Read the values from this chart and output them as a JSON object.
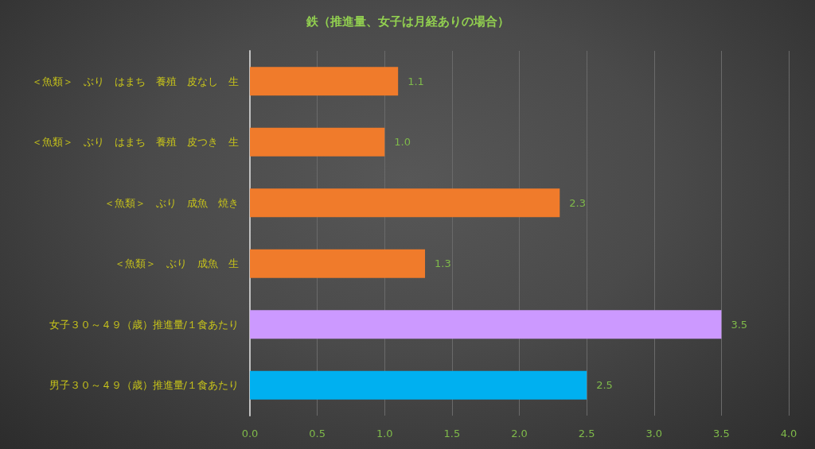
{
  "chart_data": {
    "type": "bar",
    "orientation": "horizontal",
    "title": "鉄（推進量、女子は月経ありの場合）",
    "categories": [
      "＜魚類＞　ぶり　はまち　養殖　皮なし　生",
      "＜魚類＞　ぶり　はまち　養殖　皮つき　生",
      "＜魚類＞　ぶり　成魚　焼き",
      "＜魚類＞　ぶり　成魚　生",
      "女子３０～４９（歳）推進量/１食あたり",
      "男子３０～４９（歳）推進量/１食あたり"
    ],
    "values": [
      1.1,
      1.0,
      2.3,
      1.3,
      3.5,
      2.5
    ],
    "value_labels": [
      "1.1",
      "1.0",
      "2.3",
      "1.3",
      "3.5",
      "2.5"
    ],
    "colors": [
      "#f07b2b",
      "#f07b2b",
      "#f07b2b",
      "#f07b2b",
      "#cc99ff",
      "#00b0f0"
    ],
    "xlim": [
      0,
      4
    ],
    "xticks": [
      {
        "value": 0,
        "label": "0.0"
      },
      {
        "value": 0.5,
        "label": "0.5"
      },
      {
        "value": 1,
        "label": "1.0"
      },
      {
        "value": 1.5,
        "label": "1.5"
      },
      {
        "value": 2,
        "label": "2.0"
      },
      {
        "value": 2.5,
        "label": "2.5"
      },
      {
        "value": 3,
        "label": "3.0"
      },
      {
        "value": 3.5,
        "label": "3.5"
      },
      {
        "value": 4,
        "label": "4.0"
      }
    ],
    "grid": "x"
  }
}
